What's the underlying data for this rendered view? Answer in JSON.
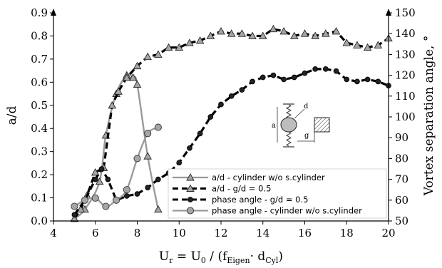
{
  "chart_data": {
    "type": "line",
    "xlabel_parts": [
      "U",
      "r",
      " = U",
      "0",
      " / (f",
      "Eigen",
      "· d",
      "Cyl",
      ")"
    ],
    "ylabel_left": "a/d",
    "ylabel_right": "Vortex separation angle, °",
    "xlim": [
      4,
      20
    ],
    "ylim_left": [
      0,
      0.9
    ],
    "ylim_right": [
      50,
      150
    ],
    "xticks": [
      "4",
      "6",
      "8",
      "10",
      "12",
      "14",
      "16",
      "18",
      "20"
    ],
    "yticks_left": [
      "0.0",
      "0.1",
      "0.2",
      "0.3",
      "0.4",
      "0.5",
      "0.6",
      "0.7",
      "0.8",
      "0.9"
    ],
    "yticks_right": [
      "50",
      "60",
      "70",
      "80",
      "90",
      "100",
      "110",
      "120",
      "130",
      "140",
      "150"
    ],
    "legend_position": "lower-right",
    "series": [
      {
        "name": "a/d - cylinder w/o s.cylinder",
        "axis": "left",
        "marker": "triangle",
        "style": "solid",
        "color": "#999999",
        "x": [
          5.0,
          5.5,
          6.2,
          6.5,
          7.0,
          7.5,
          7.8,
          8.0,
          8.5,
          9.0
        ],
        "y": [
          0.01,
          0.05,
          0.17,
          0.37,
          0.55,
          0.63,
          0.62,
          0.59,
          0.28,
          0.05
        ]
      },
      {
        "name": "a/d - g/d = 0.5",
        "axis": "left",
        "marker": "triangle",
        "style": "dashed",
        "color": "#000000",
        "x": [
          5.0,
          5.3,
          5.6,
          6.0,
          6.4,
          6.8,
          7.1,
          7.5,
          8.0,
          8.5,
          9.0,
          9.5,
          10.0,
          10.5,
          11.0,
          11.5,
          12.0,
          12.5,
          13.0,
          13.5,
          14.0,
          14.5,
          15.0,
          15.5,
          16.0,
          16.5,
          17.0,
          17.5,
          18.0,
          18.5,
          19.0,
          19.5,
          20.0
        ],
        "y": [
          0.01,
          0.05,
          0.11,
          0.21,
          0.23,
          0.5,
          0.56,
          0.62,
          0.67,
          0.71,
          0.72,
          0.75,
          0.75,
          0.77,
          0.78,
          0.8,
          0.82,
          0.81,
          0.81,
          0.8,
          0.8,
          0.83,
          0.82,
          0.8,
          0.81,
          0.8,
          0.81,
          0.82,
          0.77,
          0.76,
          0.75,
          0.76,
          0.79
        ]
      },
      {
        "name": "phase angle - g/d = 0.5",
        "axis": "right",
        "marker": "circle",
        "style": "dashed",
        "color": "#000000",
        "x": [
          5.0,
          5.5,
          6.0,
          6.3,
          6.6,
          7.0,
          7.5,
          8.0,
          8.5,
          9.0,
          9.5,
          10.0,
          10.5,
          11.0,
          11.5,
          12.0,
          12.5,
          13.0,
          13.5,
          14.0,
          14.5,
          15.0,
          15.5,
          16.0,
          16.5,
          17.0,
          17.5,
          18.0,
          18.5,
          19.0,
          19.5,
          20.0
        ],
        "y": [
          53,
          60,
          70,
          75,
          70,
          60,
          62,
          63,
          66,
          70,
          73,
          78,
          85,
          92,
          100,
          106,
          110,
          113,
          117,
          119,
          120,
          118,
          119,
          121,
          123,
          123,
          122,
          118,
          117,
          118,
          117,
          115
        ]
      },
      {
        "name": "phase angle - cylinder w/o s.cylinder",
        "axis": "right",
        "marker": "circle",
        "style": "solid",
        "color": "#999999",
        "x": [
          5.0,
          5.5,
          6.0,
          6.5,
          7.0,
          7.5,
          8.0,
          8.5,
          9.0
        ],
        "y": [
          57,
          60,
          61,
          57,
          60,
          65,
          80,
          92,
          95
        ]
      }
    ]
  },
  "schematic": {
    "label_a": "a",
    "label_d": "d",
    "label_g": "g"
  }
}
